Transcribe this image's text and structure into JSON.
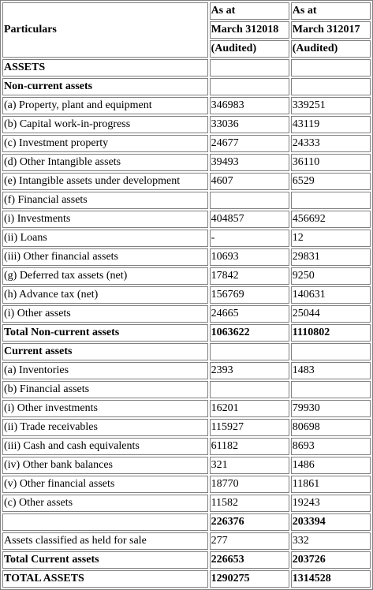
{
  "header": {
    "particulars": "Particulars",
    "col1": [
      "As at",
      "March 312018",
      "(Audited)"
    ],
    "col2": [
      "As at",
      "March 312017",
      "(Audited)"
    ]
  },
  "rows": [
    {
      "label": "ASSETS",
      "v1": "",
      "v2": "",
      "bold": true
    },
    {
      "label": "Non-current assets",
      "v1": "",
      "v2": "",
      "bold": true
    },
    {
      "label": "(a) Property, plant and equipment",
      "v1": "346983",
      "v2": "339251"
    },
    {
      "label": "(b) Capital work-in-progress",
      "v1": "33036",
      "v2": "43119"
    },
    {
      "label": "(c) Investment property",
      "v1": "24677",
      "v2": "24333"
    },
    {
      "label": "(d) Other Intangible assets",
      "v1": "39493",
      "v2": "36110"
    },
    {
      "label": "(e) Intangible assets under development",
      "v1": "4607",
      "v2": "6529"
    },
    {
      "label": "(f) Financial assets",
      "v1": "",
      "v2": ""
    },
    {
      "label": "(i) Investments",
      "v1": "404857",
      "v2": "456692"
    },
    {
      "label": "(ii) Loans",
      "v1": "-",
      "v2": "12"
    },
    {
      "label": "(iii) Other financial assets",
      "v1": "10693",
      "v2": "29831"
    },
    {
      "label": "(g) Deferred tax assets (net)",
      "v1": "17842",
      "v2": "9250"
    },
    {
      "label": "(h) Advance tax (net)",
      "v1": "156769",
      "v2": "140631"
    },
    {
      "label": "(i) Other assets",
      "v1": "24665",
      "v2": "25044"
    },
    {
      "label": "Total Non-current assets",
      "v1": "1063622",
      "v2": "1110802",
      "bold": true
    },
    {
      "label": "Current assets",
      "v1": "",
      "v2": "",
      "bold": true
    },
    {
      "label": "(a) Inventories",
      "v1": "2393",
      "v2": "1483"
    },
    {
      "label": "(b) Financial assets",
      "v1": "",
      "v2": ""
    },
    {
      "label": "(i) Other investments",
      "v1": "16201",
      "v2": "79930"
    },
    {
      "label": "(ii) Trade receivables",
      "v1": "115927",
      "v2": "80698"
    },
    {
      "label": "(iii) Cash and cash equivalents",
      "v1": "61182",
      "v2": "8693"
    },
    {
      "label": "(iv) Other bank balances",
      "v1": "321",
      "v2": "1486"
    },
    {
      "label": "(v) Other financial assets",
      "v1": "18770",
      "v2": "11861"
    },
    {
      "label": "(c) Other assets",
      "v1": "11582",
      "v2": "19243"
    },
    {
      "label": "",
      "v1": "226376",
      "v2": "203394",
      "boldValues": true
    },
    {
      "label": "Assets classified as held for sale",
      "v1": "277",
      "v2": "332"
    },
    {
      "label": "Total Current assets",
      "v1": "226653",
      "v2": "203726",
      "bold": true
    },
    {
      "label": "TOTAL ASSETS",
      "v1": "1290275",
      "v2": "1314528",
      "bold": true
    }
  ]
}
